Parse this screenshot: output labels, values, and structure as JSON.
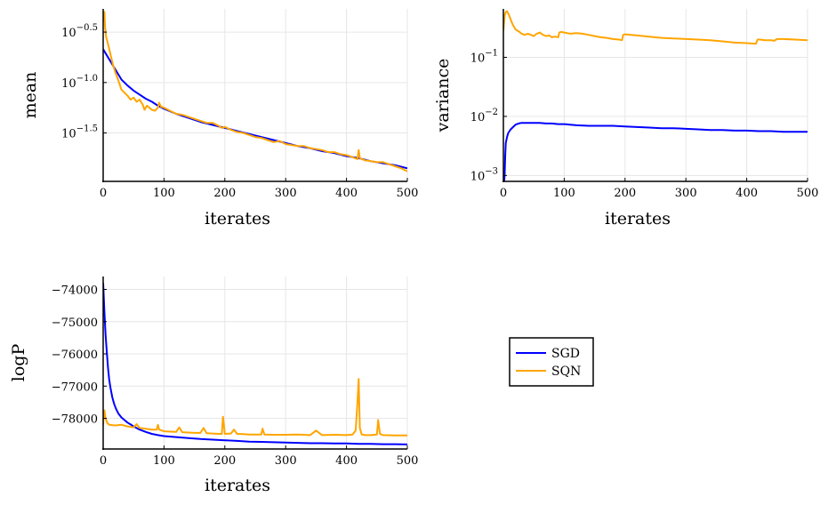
{
  "legend": {
    "items": [
      {
        "label": "SGD",
        "color": "#0000ff"
      },
      {
        "label": "SQN",
        "color": "#ffa500"
      }
    ]
  },
  "chart_data": [
    {
      "id": "mean",
      "type": "line",
      "xlabel": "iterates",
      "ylabel": "mean",
      "yscale": "log10",
      "xlim": [
        0,
        500
      ],
      "ylim": [
        -1.98,
        -0.27
      ],
      "xticks": [
        "0",
        "100",
        "200",
        "300",
        "400",
        "500"
      ],
      "yticks": [
        {
          "base": "10",
          "exp": "−0.5",
          "value": -0.5
        },
        {
          "base": "10",
          "exp": "−1.0",
          "value": -1.0
        },
        {
          "base": "10",
          "exp": "−1.5",
          "value": -1.5
        }
      ],
      "grid": true,
      "series": [
        {
          "name": "SGD",
          "color": "#0000ff",
          "x": [
            0,
            10,
            20,
            30,
            40,
            50,
            60,
            70,
            80,
            90,
            100,
            120,
            140,
            160,
            180,
            200,
            220,
            240,
            260,
            280,
            300,
            320,
            340,
            360,
            380,
            400,
            420,
            440,
            460,
            480,
            500
          ],
          "y": [
            -0.67,
            -0.77,
            -0.87,
            -0.97,
            -1.03,
            -1.08,
            -1.12,
            -1.16,
            -1.19,
            -1.23,
            -1.26,
            -1.31,
            -1.35,
            -1.39,
            -1.42,
            -1.45,
            -1.48,
            -1.51,
            -1.54,
            -1.57,
            -1.6,
            -1.63,
            -1.65,
            -1.68,
            -1.7,
            -1.73,
            -1.75,
            -1.78,
            -1.8,
            -1.82,
            -1.85
          ]
        },
        {
          "name": "SQN",
          "color": "#ffa500",
          "x": [
            0,
            2,
            3,
            5,
            8,
            12,
            16,
            20,
            25,
            30,
            35,
            40,
            45,
            50,
            55,
            60,
            65,
            68,
            72,
            76,
            80,
            85,
            90,
            92,
            95,
            100,
            110,
            120,
            130,
            140,
            150,
            160,
            170,
            180,
            190,
            195,
            200,
            210,
            220,
            230,
            240,
            250,
            260,
            270,
            280,
            290,
            300,
            310,
            320,
            330,
            340,
            350,
            360,
            370,
            380,
            390,
            400,
            410,
            418,
            420,
            422,
            430,
            440,
            450,
            460,
            470,
            480,
            490,
            500
          ],
          "y": [
            -0.4,
            -0.3,
            -0.45,
            -0.55,
            -0.62,
            -0.72,
            -0.82,
            -0.9,
            -0.98,
            -1.07,
            -1.1,
            -1.13,
            -1.17,
            -1.15,
            -1.19,
            -1.17,
            -1.22,
            -1.27,
            -1.23,
            -1.25,
            -1.27,
            -1.28,
            -1.25,
            -1.2,
            -1.24,
            -1.25,
            -1.28,
            -1.31,
            -1.32,
            -1.34,
            -1.36,
            -1.38,
            -1.4,
            -1.4,
            -1.43,
            -1.45,
            -1.44,
            -1.47,
            -1.49,
            -1.5,
            -1.52,
            -1.54,
            -1.55,
            -1.57,
            -1.59,
            -1.58,
            -1.61,
            -1.62,
            -1.63,
            -1.63,
            -1.65,
            -1.66,
            -1.67,
            -1.69,
            -1.69,
            -1.71,
            -1.72,
            -1.74,
            -1.76,
            -1.67,
            -1.75,
            -1.77,
            -1.78,
            -1.79,
            -1.79,
            -1.81,
            -1.83,
            -1.85,
            -1.88
          ]
        }
      ]
    },
    {
      "id": "variance",
      "type": "line",
      "xlabel": "iterates",
      "ylabel": "variance",
      "yscale": "log10",
      "xlim": [
        0,
        500
      ],
      "ylim": [
        -3.1,
        -0.18
      ],
      "xticks": [
        "0",
        "100",
        "200",
        "300",
        "400",
        "500"
      ],
      "yticks": [
        {
          "base": "10",
          "exp": "−1",
          "value": -1
        },
        {
          "base": "10",
          "exp": "−2",
          "value": -2
        },
        {
          "base": "10",
          "exp": "−3",
          "value": -3
        }
      ],
      "grid": true,
      "series": [
        {
          "name": "SGD",
          "color": "#0000ff",
          "x": [
            1,
            2,
            3,
            4,
            6,
            8,
            12,
            16,
            20,
            25,
            30,
            40,
            50,
            60,
            70,
            80,
            90,
            100,
            110,
            120,
            140,
            160,
            180,
            200,
            220,
            240,
            260,
            280,
            300,
            320,
            340,
            360,
            380,
            400,
            420,
            440,
            460,
            480,
            500
          ],
          "y": [
            -3.15,
            -3.0,
            -2.65,
            -2.45,
            -2.35,
            -2.28,
            -2.22,
            -2.18,
            -2.14,
            -2.12,
            -2.11,
            -2.11,
            -2.11,
            -2.11,
            -2.12,
            -2.12,
            -2.13,
            -2.13,
            -2.14,
            -2.15,
            -2.16,
            -2.16,
            -2.16,
            -2.17,
            -2.18,
            -2.19,
            -2.2,
            -2.2,
            -2.21,
            -2.22,
            -2.23,
            -2.23,
            -2.24,
            -2.24,
            -2.25,
            -2.25,
            -2.26,
            -2.26,
            -2.26
          ]
        },
        {
          "name": "SQN",
          "color": "#ffa500",
          "x": [
            0,
            2,
            4,
            6,
            9,
            12,
            15,
            20,
            25,
            30,
            35,
            40,
            45,
            50,
            55,
            60,
            65,
            70,
            75,
            80,
            85,
            90,
            92,
            95,
            100,
            110,
            120,
            130,
            140,
            150,
            160,
            170,
            180,
            190,
            195,
            197,
            200,
            210,
            220,
            240,
            260,
            280,
            300,
            320,
            340,
            360,
            380,
            400,
            415,
            418,
            422,
            430,
            440,
            445,
            450,
            460,
            480,
            500
          ],
          "y": [
            -0.55,
            -0.3,
            -0.23,
            -0.22,
            -0.28,
            -0.36,
            -0.44,
            -0.53,
            -0.56,
            -0.6,
            -0.62,
            -0.6,
            -0.62,
            -0.64,
            -0.6,
            -0.58,
            -0.62,
            -0.64,
            -0.63,
            -0.66,
            -0.65,
            -0.66,
            -0.58,
            -0.57,
            -0.58,
            -0.6,
            -0.59,
            -0.6,
            -0.62,
            -0.64,
            -0.66,
            -0.67,
            -0.69,
            -0.7,
            -0.71,
            -0.62,
            -0.61,
            -0.62,
            -0.63,
            -0.65,
            -0.67,
            -0.68,
            -0.69,
            -0.7,
            -0.71,
            -0.73,
            -0.75,
            -0.76,
            -0.77,
            -0.7,
            -0.7,
            -0.71,
            -0.71,
            -0.72,
            -0.69,
            -0.69,
            -0.7,
            -0.71
          ]
        }
      ]
    },
    {
      "id": "logP",
      "type": "line",
      "xlabel": "iterates",
      "ylabel": "logP",
      "yscale": "linear",
      "xlim": [
        0,
        500
      ],
      "ylim": [
        -78950,
        -73600
      ],
      "xticks": [
        "0",
        "100",
        "200",
        "300",
        "400",
        "500"
      ],
      "yticks": [
        {
          "label": "−74000",
          "value": -74000
        },
        {
          "label": "−75000",
          "value": -75000
        },
        {
          "label": "−76000",
          "value": -76000
        },
        {
          "label": "−77000",
          "value": -77000
        },
        {
          "label": "−78000",
          "value": -78000
        }
      ],
      "grid": true,
      "series": [
        {
          "name": "SGD",
          "color": "#0000ff",
          "x": [
            0,
            2,
            4,
            6,
            8,
            10,
            12,
            15,
            18,
            21,
            25,
            30,
            35,
            40,
            45,
            50,
            60,
            70,
            80,
            90,
            100,
            120,
            140,
            160,
            180,
            200,
            220,
            240,
            260,
            280,
            300,
            320,
            340,
            360,
            380,
            400,
            420,
            440,
            460,
            480,
            500
          ],
          "y": [
            -73800,
            -74700,
            -75400,
            -75950,
            -76450,
            -76800,
            -77050,
            -77350,
            -77550,
            -77700,
            -77850,
            -77970,
            -78050,
            -78130,
            -78190,
            -78250,
            -78350,
            -78420,
            -78480,
            -78520,
            -78550,
            -78580,
            -78610,
            -78640,
            -78660,
            -78680,
            -78700,
            -78720,
            -78730,
            -78740,
            -78750,
            -78760,
            -78770,
            -78770,
            -78780,
            -78780,
            -78790,
            -78790,
            -78800,
            -78800,
            -78810
          ]
        },
        {
          "name": "SQN",
          "color": "#ffa500",
          "x": [
            0,
            1,
            2,
            4,
            7,
            10,
            20,
            30,
            40,
            50,
            55,
            60,
            70,
            80,
            88,
            90,
            92,
            100,
            120,
            125,
            130,
            150,
            160,
            165,
            170,
            180,
            190,
            195,
            197,
            200,
            210,
            215,
            220,
            230,
            240,
            250,
            260,
            262,
            265,
            280,
            300,
            320,
            340,
            350,
            360,
            380,
            400,
            410,
            415,
            418,
            420,
            422,
            425,
            430,
            440,
            450,
            452,
            455,
            460,
            480,
            500
          ],
          "y": [
            -78200,
            -77800,
            -77750,
            -78000,
            -78150,
            -78200,
            -78220,
            -78200,
            -78250,
            -78280,
            -78180,
            -78300,
            -78320,
            -78350,
            -78350,
            -78200,
            -78350,
            -78400,
            -78420,
            -78280,
            -78430,
            -78450,
            -78450,
            -78300,
            -78460,
            -78470,
            -78480,
            -78480,
            -77950,
            -78480,
            -78470,
            -78350,
            -78480,
            -78490,
            -78500,
            -78500,
            -78500,
            -78320,
            -78500,
            -78510,
            -78510,
            -78500,
            -78520,
            -78380,
            -78520,
            -78510,
            -78520,
            -78500,
            -78380,
            -77520,
            -76780,
            -78300,
            -78500,
            -78520,
            -78520,
            -78500,
            -78050,
            -78480,
            -78520,
            -78530,
            -78530
          ]
        }
      ]
    }
  ]
}
